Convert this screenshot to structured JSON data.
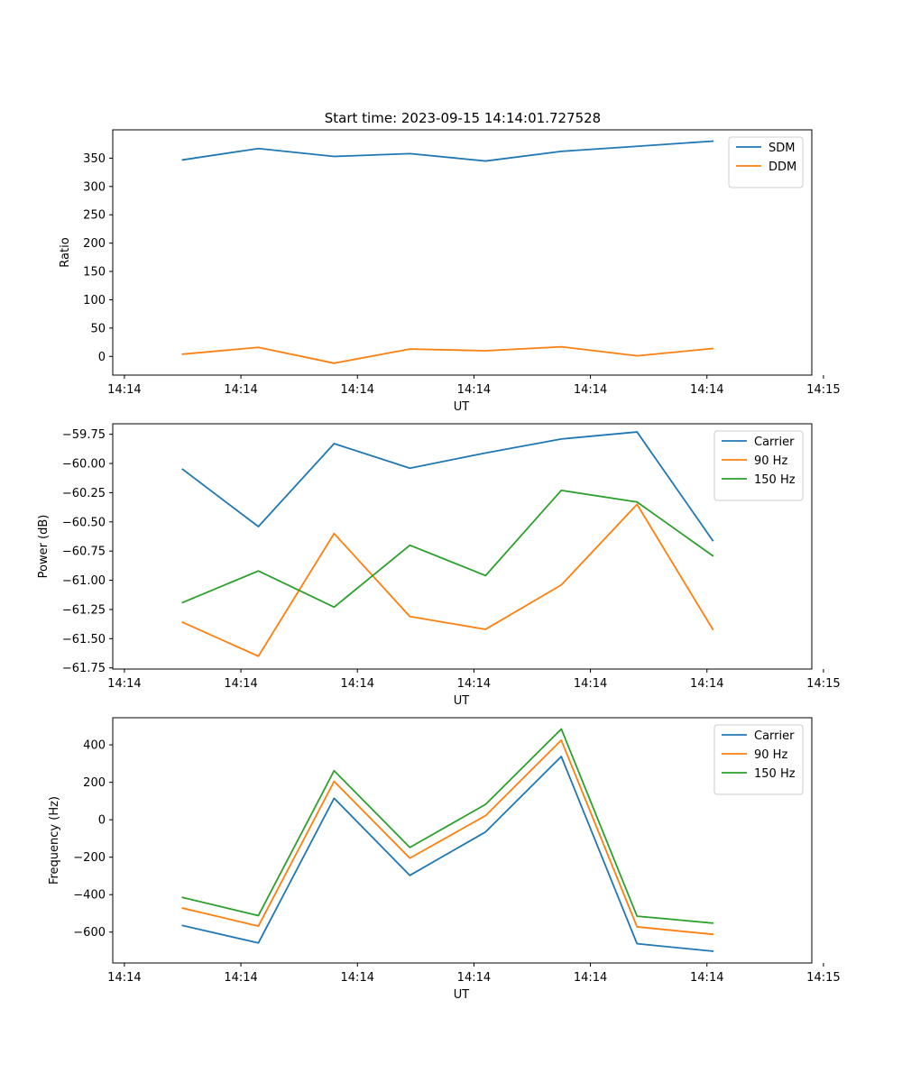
{
  "chart_data": [
    {
      "type": "line",
      "title": "Start time: 2023-09-15 14:14:01.727528",
      "xlabel": "UT",
      "ylabel": "Ratio",
      "x": [
        0.5,
        1.15,
        1.8,
        2.45,
        3.1,
        3.75,
        4.4,
        5.05
      ],
      "xlim": [
        -0.1,
        5.9
      ],
      "xticks": [
        0,
        1,
        2,
        3,
        4,
        5,
        6
      ],
      "xtick_labels": [
        "14:14",
        "14:14",
        "14:14",
        "14:14",
        "14:14",
        "14:14",
        "14:15"
      ],
      "ylim": [
        -33,
        400
      ],
      "yticks": [
        0,
        50,
        100,
        150,
        200,
        250,
        300,
        350
      ],
      "yticklabels": [
        "0",
        "50",
        "100",
        "150",
        "200",
        "250",
        "300",
        "350"
      ],
      "legend_position": "top-right",
      "series": [
        {
          "name": "SDM",
          "color": "#1f77b4",
          "values": [
            347,
            367,
            353,
            358,
            345,
            362,
            371,
            380
          ]
        },
        {
          "name": "DDM",
          "color": "#ff7f0e",
          "values": [
            4,
            16,
            -12,
            13,
            10,
            17,
            1,
            14
          ]
        }
      ]
    },
    {
      "type": "line",
      "title": "",
      "xlabel": "UT",
      "ylabel": "Power (dB)",
      "x": [
        0.5,
        1.15,
        1.8,
        2.45,
        3.1,
        3.75,
        4.4,
        5.05
      ],
      "xlim": [
        -0.1,
        5.9
      ],
      "xticks": [
        0,
        1,
        2,
        3,
        4,
        5,
        6
      ],
      "xtick_labels": [
        "14:14",
        "14:14",
        "14:14",
        "14:14",
        "14:14",
        "14:14",
        "14:15"
      ],
      "ylim": [
        -61.76,
        -59.66
      ],
      "yticks": [
        -61.75,
        -61.5,
        -61.25,
        -61.0,
        -60.75,
        -60.5,
        -60.25,
        -60.0,
        -59.75
      ],
      "yticklabels": [
        "−61.75",
        "−61.50",
        "−61.25",
        "−61.00",
        "−60.75",
        "−60.50",
        "−60.25",
        "−60.00",
        "−59.75"
      ],
      "legend_position": "top-right",
      "series": [
        {
          "name": "Carrier",
          "color": "#1f77b4",
          "values": [
            -60.05,
            -60.54,
            -59.83,
            -60.04,
            -59.91,
            -59.79,
            -59.73,
            -60.66
          ]
        },
        {
          "name": "90 Hz",
          "color": "#ff7f0e",
          "values": [
            -61.36,
            -61.65,
            -60.6,
            -61.31,
            -61.42,
            -61.04,
            -60.35,
            -61.42
          ]
        },
        {
          "name": "150 Hz",
          "color": "#2ca02c",
          "values": [
            -61.19,
            -60.92,
            -61.23,
            -60.7,
            -60.96,
            -60.23,
            -60.33,
            -60.79
          ]
        }
      ]
    },
    {
      "type": "line",
      "title": "",
      "xlabel": "UT",
      "ylabel": "Frequency (Hz)",
      "x": [
        0.5,
        1.15,
        1.8,
        2.45,
        3.1,
        3.75,
        4.4,
        5.05
      ],
      "xlim": [
        -0.1,
        5.9
      ],
      "xticks": [
        0,
        1,
        2,
        3,
        4,
        5,
        6
      ],
      "xtick_labels": [
        "14:14",
        "14:14",
        "14:14",
        "14:14",
        "14:14",
        "14:14",
        "14:15"
      ],
      "ylim": [
        -765,
        545
      ],
      "yticks": [
        -600,
        -400,
        -200,
        0,
        200,
        400
      ],
      "yticklabels": [
        "−600",
        "−400",
        "−200",
        "0",
        "200",
        "400"
      ],
      "legend_position": "top-right",
      "series": [
        {
          "name": "Carrier",
          "color": "#1f77b4",
          "values": [
            -565,
            -658,
            115,
            -297,
            -65,
            338,
            -662,
            -702
          ]
        },
        {
          "name": "90 Hz",
          "color": "#ff7f0e",
          "values": [
            -472,
            -568,
            205,
            -205,
            22,
            425,
            -572,
            -612
          ]
        },
        {
          "name": "150 Hz",
          "color": "#2ca02c",
          "values": [
            -415,
            -512,
            262,
            -148,
            82,
            485,
            -515,
            -552
          ]
        }
      ]
    }
  ]
}
